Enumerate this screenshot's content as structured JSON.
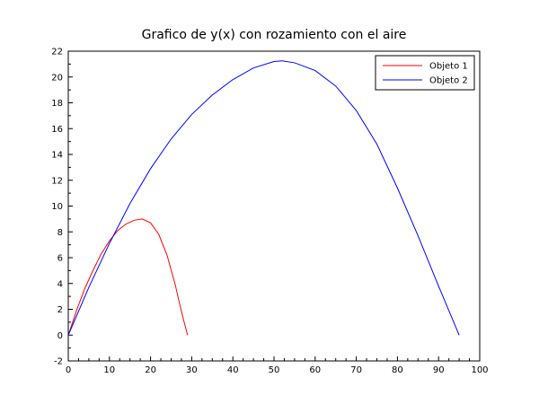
{
  "chart_data": {
    "type": "line",
    "title": "Grafico de y(x) con rozamiento con el aire",
    "xlabel": "",
    "ylabel": "",
    "xlim": [
      0,
      100
    ],
    "ylim": [
      -2,
      22
    ],
    "xticks": [
      0,
      10,
      20,
      30,
      40,
      50,
      60,
      70,
      80,
      90,
      100
    ],
    "yticks": [
      -2,
      0,
      2,
      4,
      6,
      8,
      10,
      12,
      14,
      16,
      18,
      20,
      22
    ],
    "grid": false,
    "legend_position": "top-right",
    "series": [
      {
        "name": "Objeto 1",
        "color": "#ff0000",
        "x": [
          0,
          2,
          4,
          6,
          8,
          10,
          12,
          14,
          16,
          18,
          20,
          22,
          24,
          26,
          27,
          28,
          29
        ],
        "y": [
          0,
          1.9,
          3.6,
          5.0,
          6.3,
          7.3,
          8.1,
          8.6,
          8.9,
          9.0,
          8.7,
          7.8,
          6.2,
          3.9,
          2.5,
          1.2,
          0
        ]
      },
      {
        "name": "Objeto 2",
        "color": "#0000ff",
        "x": [
          0,
          5,
          10,
          15,
          20,
          25,
          30,
          35,
          40,
          45,
          50,
          52,
          55,
          60,
          65,
          70,
          75,
          80,
          85,
          90,
          95
        ],
        "y": [
          0,
          3.7,
          7.1,
          10.2,
          12.9,
          15.2,
          17.1,
          18.6,
          19.8,
          20.7,
          21.2,
          21.25,
          21.1,
          20.5,
          19.3,
          17.4,
          14.8,
          11.4,
          7.7,
          3.8,
          0
        ]
      }
    ]
  }
}
